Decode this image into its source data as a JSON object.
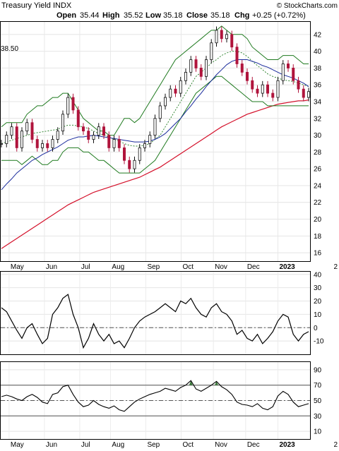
{
  "header": {
    "title": "Treasury Yield INDX",
    "watermark": "© StockCharts.com",
    "open_label": "Open",
    "open_value": "35.44",
    "high_label": "High",
    "high_value": "35.52",
    "low_label": "Low",
    "low_value": "35.18",
    "close_label": "Close",
    "close_value": "35.18",
    "chg_label": "Chg",
    "chg_value": "+0.25 (+0.72%)",
    "ma_value_label": "38.50"
  },
  "chart_data": [
    {
      "type": "candlestick",
      "panel": "price",
      "x_ticks": [
        "May",
        "Jun",
        "Jul",
        "Aug",
        "Sep",
        "Oct",
        "Nov",
        "Dec",
        "2023",
        "2"
      ],
      "y_ticks": [
        "16",
        "18",
        "20",
        "22",
        "24",
        "26",
        "28",
        "30",
        "32",
        "34",
        "36",
        "38",
        "40",
        "42"
      ],
      "ylim": [
        15,
        43.5
      ],
      "close": [
        29,
        30,
        31,
        28.5,
        30.5,
        31.5,
        29.5,
        28.5,
        29,
        28.5,
        29.5,
        30.5,
        32.5,
        34.5,
        33,
        31,
        30.5,
        29.5,
        30,
        31,
        30,
        28.5,
        29.5,
        28.5,
        27,
        26,
        27,
        28.5,
        29,
        30,
        32,
        33.5,
        34.5,
        35.5,
        35,
        36.5,
        37.5,
        39,
        38,
        37,
        39,
        41,
        42.5,
        41.5,
        42,
        40.5,
        38.5,
        37.5,
        36.5,
        35.5,
        35,
        36,
        35,
        34.5,
        36.5,
        38.5,
        38,
        36.5,
        35.5,
        34.5,
        35.2
      ],
      "bollinger_upper": [
        31,
        31.5,
        31.5,
        31.5,
        31.5,
        32.5,
        33,
        33.5,
        33.5,
        34,
        34.5,
        34.5,
        35,
        35,
        34,
        33,
        32,
        31.5,
        31,
        30.5,
        30.5,
        30,
        30,
        31,
        32,
        32,
        31.5,
        32,
        33,
        34,
        35,
        36,
        37,
        38,
        39,
        39.5,
        40,
        40.5,
        41,
        41.5,
        42,
        42.5,
        42.5,
        43,
        42.5,
        42,
        42,
        42,
        41.5,
        40.5,
        40,
        39.5,
        39,
        39,
        39,
        39.5,
        39.5,
        39.5,
        39,
        38.5,
        38.5
      ],
      "bollinger_lower": [
        27,
        27,
        27,
        27,
        26.5,
        27,
        27.5,
        27,
        26.5,
        26.5,
        27,
        27,
        28,
        28.5,
        28.5,
        28.5,
        28,
        28,
        27.5,
        27,
        27,
        26.5,
        26,
        25.5,
        25.5,
        25.5,
        25.5,
        25.5,
        26,
        26.5,
        27,
        28,
        29,
        30,
        31,
        32,
        33,
        34,
        35,
        35.5,
        36,
        36.5,
        37,
        37,
        36.5,
        36,
        35.5,
        35,
        34.5,
        34,
        34,
        34,
        33.5,
        33.5,
        33.5,
        33.5,
        33.5,
        33.5,
        33.5,
        33.5,
        33.5
      ],
      "ma_20": [
        29,
        29.2,
        29.4,
        29.6,
        29.8,
        30,
        30.2,
        30.3,
        30.4,
        30.5,
        30.6,
        30.7,
        31,
        31.2,
        31.2,
        31.1,
        31,
        30.8,
        30.5,
        30.2,
        30,
        29.8,
        29.5,
        29.3,
        29,
        28.8,
        28.7,
        28.7,
        28.8,
        29,
        29.5,
        30,
        31,
        32,
        33,
        34,
        35,
        36,
        37,
        37.5,
        38,
        38.6,
        39,
        39.5,
        39.8,
        40,
        40,
        39.8,
        39.4,
        38.8,
        38.3,
        37.8,
        37.3,
        37,
        36.8,
        36.6,
        36.5,
        36.4,
        36.2,
        36,
        35.8
      ],
      "ma_50": [
        23.5,
        24.2,
        24.8,
        25.5,
        26,
        26.5,
        27,
        27.3,
        27.7,
        28,
        28.3,
        28.6,
        29,
        29.4,
        29.6,
        29.8,
        29.8,
        29.9,
        30,
        29.9,
        29.8,
        29.7,
        29.6,
        29.5,
        29.4,
        29.3,
        29.2,
        29.2,
        29.2,
        29.3,
        29.5,
        29.8,
        30.2,
        30.8,
        31.4,
        32,
        32.8,
        33.5,
        34.3,
        35,
        35.8,
        36.5,
        37.2,
        37.8,
        38.4,
        38.8,
        39,
        39,
        39,
        38.8,
        38.6,
        38.3,
        38.1,
        37.8,
        37.5,
        37.2,
        37,
        36.8,
        36.5,
        36.2,
        35.8
      ],
      "ma_200": [
        16.5,
        16.9,
        17.3,
        17.7,
        18.1,
        18.5,
        18.9,
        19.3,
        19.7,
        20.1,
        20.5,
        20.9,
        21.3,
        21.7,
        22,
        22.3,
        22.6,
        22.9,
        23.2,
        23.4,
        23.6,
        23.8,
        24,
        24.2,
        24.4,
        24.6,
        24.8,
        25,
        25.3,
        25.6,
        25.9,
        26.2,
        26.6,
        27,
        27.4,
        27.8,
        28.2,
        28.6,
        29,
        29.4,
        29.8,
        30.2,
        30.6,
        31,
        31.3,
        31.6,
        31.9,
        32.2,
        32.5,
        32.7,
        32.9,
        33.1,
        33.3,
        33.5,
        33.7,
        33.8,
        33.9,
        34,
        34.1,
        34.1,
        34.2
      ]
    },
    {
      "type": "line",
      "panel": "oscillator",
      "y_ticks": [
        "40",
        "30",
        "20",
        "10",
        "0",
        "-10"
      ],
      "ylim": [
        -20,
        42
      ],
      "reference": 0,
      "values": [
        15,
        12,
        5,
        -2,
        -8,
        0,
        3,
        -5,
        -12,
        -8,
        10,
        15,
        22,
        25,
        10,
        0,
        -15,
        -8,
        3,
        -5,
        -10,
        -5,
        -12,
        -10,
        -15,
        -8,
        0,
        5,
        8,
        10,
        12,
        15,
        18,
        15,
        12,
        20,
        18,
        22,
        15,
        10,
        8,
        15,
        18,
        12,
        10,
        5,
        -5,
        -2,
        -8,
        -10,
        -5,
        -12,
        -8,
        -3,
        5,
        10,
        8,
        -5,
        -10,
        -5,
        -3
      ]
    },
    {
      "type": "line",
      "panel": "rsi",
      "y_ticks": [
        "90",
        "70",
        "50",
        "30",
        "10"
      ],
      "ylim": [
        0,
        100
      ],
      "reference_lines": [
        70,
        50,
        30
      ],
      "values": [
        55,
        57,
        55,
        52,
        50,
        55,
        58,
        54,
        48,
        46,
        58,
        60,
        68,
        70,
        58,
        48,
        42,
        44,
        50,
        45,
        42,
        40,
        43,
        38,
        36,
        42,
        48,
        52,
        55,
        58,
        60,
        62,
        66,
        64,
        62,
        67,
        70,
        76,
        65,
        62,
        66,
        70,
        75,
        68,
        64,
        58,
        48,
        45,
        44,
        42,
        46,
        40,
        38,
        42,
        56,
        62,
        58,
        48,
        42,
        44,
        46
      ]
    }
  ]
}
